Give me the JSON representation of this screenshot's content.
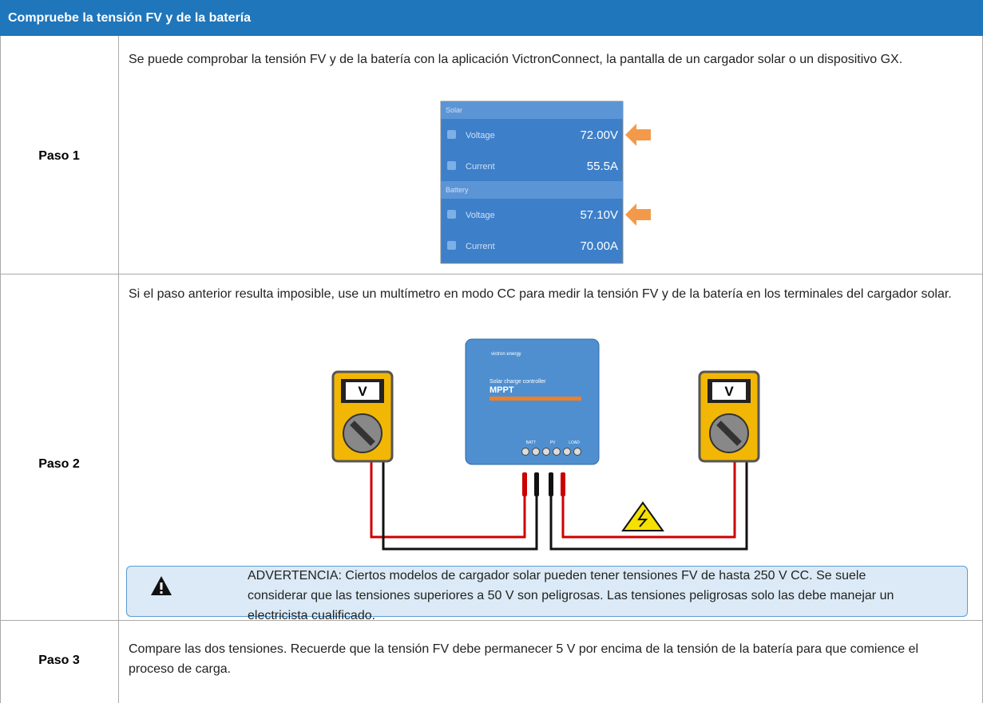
{
  "header": {
    "title": "Compruebe la tensión FV y de la batería"
  },
  "steps": [
    {
      "label": "Paso 1",
      "text": "Se puede comprobar la tensión FV y de la batería con la aplicación VictronConnect, la pantalla de un cargador solar o un dispositivo GX."
    },
    {
      "label": "Paso 2",
      "text": "Si el paso anterior resulta imposible, use un multímetro en modo CC para medir la tensión FV y de la batería en los terminales del cargador solar."
    },
    {
      "label": "Paso 3",
      "text": "Compare las dos tensiones. Recuerde que la tensión FV debe permanecer 5 V por encima de la tensión de la batería para que comience el proceso de carga."
    }
  ],
  "screen": {
    "sections": [
      {
        "title": "Solar",
        "rows": [
          {
            "label": "Voltage",
            "value": "72.00V"
          },
          {
            "label": "Current",
            "value": "55.5A"
          }
        ]
      },
      {
        "title": "Battery",
        "rows": [
          {
            "label": "Voltage",
            "value": "57.10V"
          },
          {
            "label": "Current",
            "value": "70.00A"
          }
        ]
      }
    ]
  },
  "diagram": {
    "meter_labels": [
      "V",
      "V"
    ],
    "brand": "victron energy",
    "product": "Solar charge controller",
    "model": "MPPT",
    "terminals": [
      "BATT",
      "PV",
      "LOAD"
    ]
  },
  "warning": {
    "text": "ADVERTENCIA: Ciertos modelos de cargador solar pueden tener tensiones FV de hasta 250 V CC. Se suele considerar que las tensiones superiores a 50 V son peligrosas. Las tensiones peligrosas solo las debe manejar un electricista cualificado."
  }
}
